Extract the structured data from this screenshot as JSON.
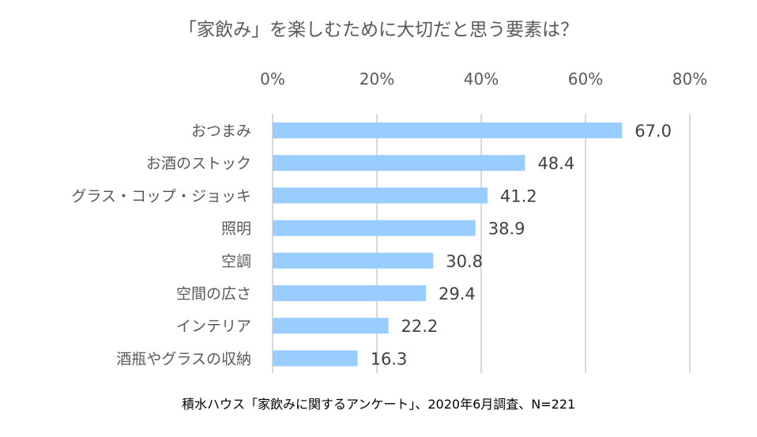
{
  "chart_data": {
    "type": "bar",
    "orientation": "horizontal",
    "title": "「家飲み」を楽しむためにに大切だと思う要素は？",
    "categories": [
      "おつまみ",
      "お酒のストック",
      "グラス・コップ・ジョッキ",
      "照明",
      "空調",
      "空間の広さ",
      "インテリア",
      "酒瓶やグラスの収納"
    ],
    "values": [
      67.0,
      48.4,
      41.2,
      38.9,
      30.8,
      29.4,
      22.2,
      16.3
    ],
    "value_labels": [
      "67.0",
      "48.4",
      "41.2",
      "38.9",
      "30.8",
      "29.4",
      "22.2",
      "16.3"
    ],
    "xticks": [
      0,
      20,
      40,
      60,
      80
    ],
    "xtick_labels": [
      "0%",
      "20%",
      "40%",
      "60%",
      "80%"
    ],
    "xlim": [
      0,
      80
    ],
    "axis_position": "top",
    "grid": true,
    "bar_color": "#99ccff",
    "source": "積水ハウス「家飲みに関するアンケート」、2020年6月調査、N=221"
  }
}
